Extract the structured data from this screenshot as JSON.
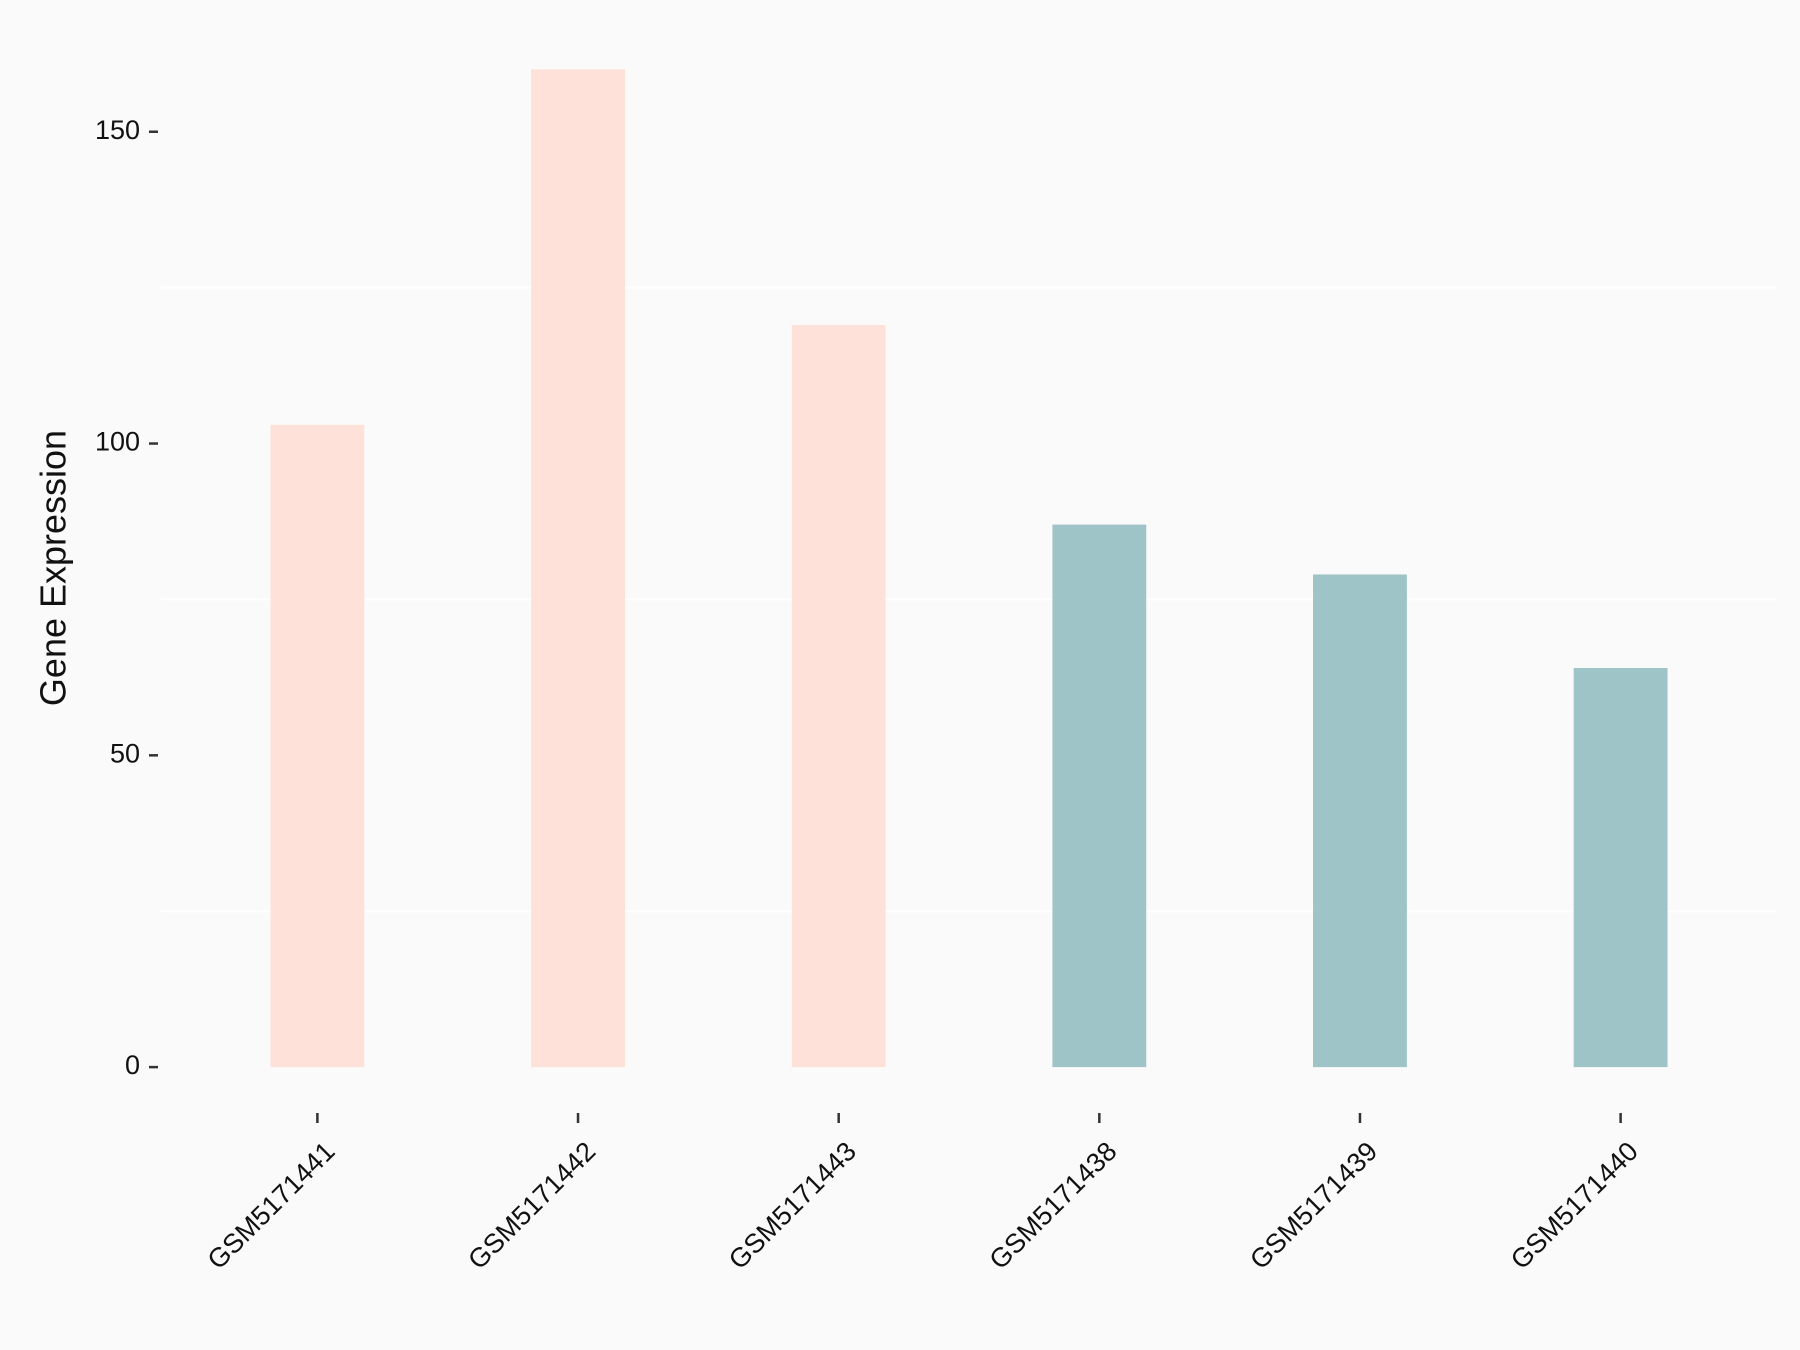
{
  "chart_data": {
    "type": "bar",
    "ylabel": "Gene Expression",
    "categories": [
      "GSM5171441",
      "GSM5171442",
      "GSM5171443",
      "GSM5171438",
      "GSM5171439",
      "GSM5171440"
    ],
    "values": [
      103,
      160,
      119,
      87,
      79,
      64
    ],
    "colors": [
      "#fee1d8",
      "#fee1d8",
      "#fee1d8",
      "#9ec4c8",
      "#9ec4c8",
      "#9ec4c8"
    ],
    "ylim": [
      -8,
      168
    ],
    "yticks": [
      0,
      50,
      100,
      150
    ],
    "minor_gridlines": [
      25,
      75,
      125
    ]
  }
}
